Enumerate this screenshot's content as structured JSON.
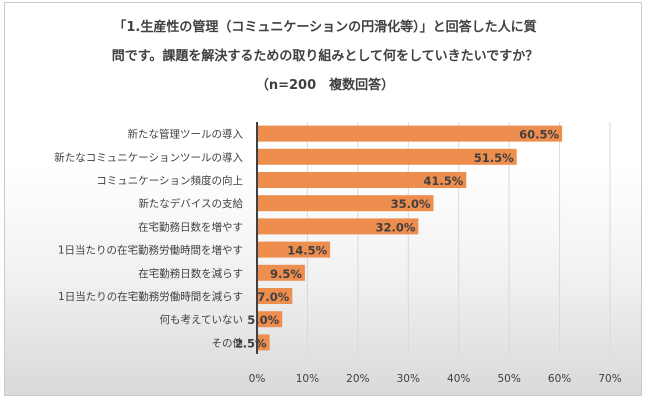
{
  "title_lines": [
    "「1.生産性の管理（コミュニケーションの円滑化等）」と回答した人に質",
    "問です。課題を解決するための取り組みとして何をしていきたいですか？",
    "（n=200　複数回答）"
  ],
  "colors": {
    "bar": "#ed8d4e",
    "axis": "#404040",
    "grid": "#d9d9d9",
    "text": "#404040"
  },
  "chart_data": {
    "type": "bar",
    "orientation": "horizontal",
    "categories": [
      "新たな管理ツールの導入",
      "新たなコミュニケーションツールの導入",
      "コミュニケーション頻度の向上",
      "新たなデバイスの支給",
      "在宅勤務日数を増やす",
      "1日当たりの在宅勤務労働時間を増やす",
      "在宅勤務日数を減らす",
      "1日当たりの在宅勤務労働時間を減らす",
      "何も考えていない",
      "その他"
    ],
    "values": [
      60.5,
      51.5,
      41.5,
      35.0,
      32.0,
      14.5,
      9.5,
      7.0,
      5.0,
      2.5
    ],
    "value_labels": [
      "60.5%",
      "51.5%",
      "41.5%",
      "35.0%",
      "32.0%",
      "14.5%",
      "9.5%",
      "7.0%",
      "5.0%",
      "2.5%"
    ],
    "xlim": [
      0,
      70
    ],
    "xticks": [
      0,
      10,
      20,
      30,
      40,
      50,
      60,
      70
    ],
    "xtick_labels": [
      "0%",
      "10%",
      "20%",
      "30%",
      "40%",
      "50%",
      "60%",
      "70%"
    ],
    "grid": true
  }
}
